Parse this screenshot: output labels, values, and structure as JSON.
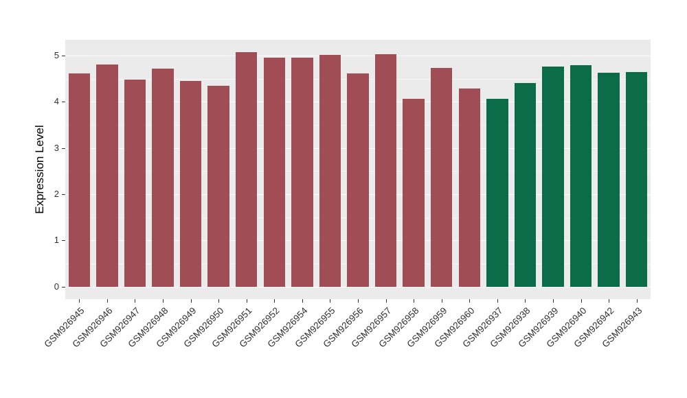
{
  "figure": {
    "background": "#ffffff"
  },
  "chart_data": {
    "type": "bar",
    "title": "",
    "xlabel": "",
    "ylabel": "Expression Level",
    "categories": [
      "GSM926945",
      "GSM926946",
      "GSM926947",
      "GSM926948",
      "GSM926949",
      "GSM926950",
      "GSM926951",
      "GSM926952",
      "GSM926954",
      "GSM926955",
      "GSM926956",
      "GSM926957",
      "GSM926958",
      "GSM926959",
      "GSM926960",
      "GSM926937",
      "GSM926938",
      "GSM926939",
      "GSM926940",
      "GSM926942",
      "GSM926943"
    ],
    "values": [
      4.61,
      4.8,
      4.48,
      4.71,
      4.45,
      4.34,
      5.07,
      4.95,
      4.96,
      5.01,
      4.61,
      5.03,
      4.06,
      4.73,
      4.29,
      4.07,
      4.41,
      4.76,
      4.79,
      4.63,
      4.64
    ],
    "groups": [
      "A",
      "A",
      "A",
      "A",
      "A",
      "A",
      "A",
      "A",
      "A",
      "A",
      "A",
      "A",
      "A",
      "A",
      "A",
      "B",
      "B",
      "B",
      "B",
      "B",
      "B"
    ],
    "group_colors": {
      "A": "#A14D56",
      "B": "#0C6B48"
    },
    "y_ticks": [
      0,
      1,
      2,
      3,
      4,
      5
    ],
    "y_tick_labels": [
      "0",
      "1",
      "2",
      "3",
      "4",
      "5"
    ],
    "y_minor_ticks": [
      0.5,
      1.5,
      2.5,
      3.5,
      4.5
    ],
    "ylim": [
      -0.27,
      5.34
    ],
    "grid": true,
    "legend": "none",
    "panel_background": "#EBEBEB",
    "grid_color": "#FFFFFF",
    "bar_width_fraction": 0.78
  }
}
